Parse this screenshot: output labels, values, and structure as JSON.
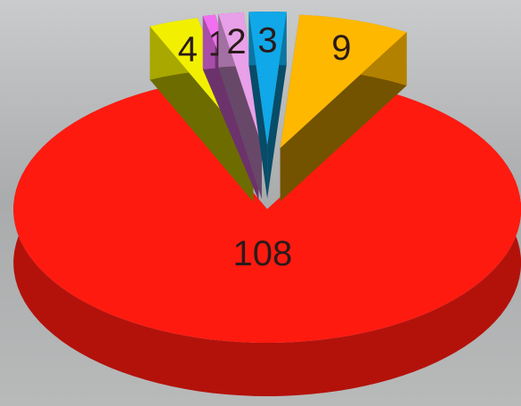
{
  "chart_data": {
    "type": "pie",
    "values": [
      4,
      1,
      2,
      3,
      9,
      108
    ],
    "colors": [
      "#f2f000",
      "#f070f0",
      "#e8a0e8",
      "#10a8e8",
      "#ffb800",
      "#ff1a10"
    ]
  }
}
